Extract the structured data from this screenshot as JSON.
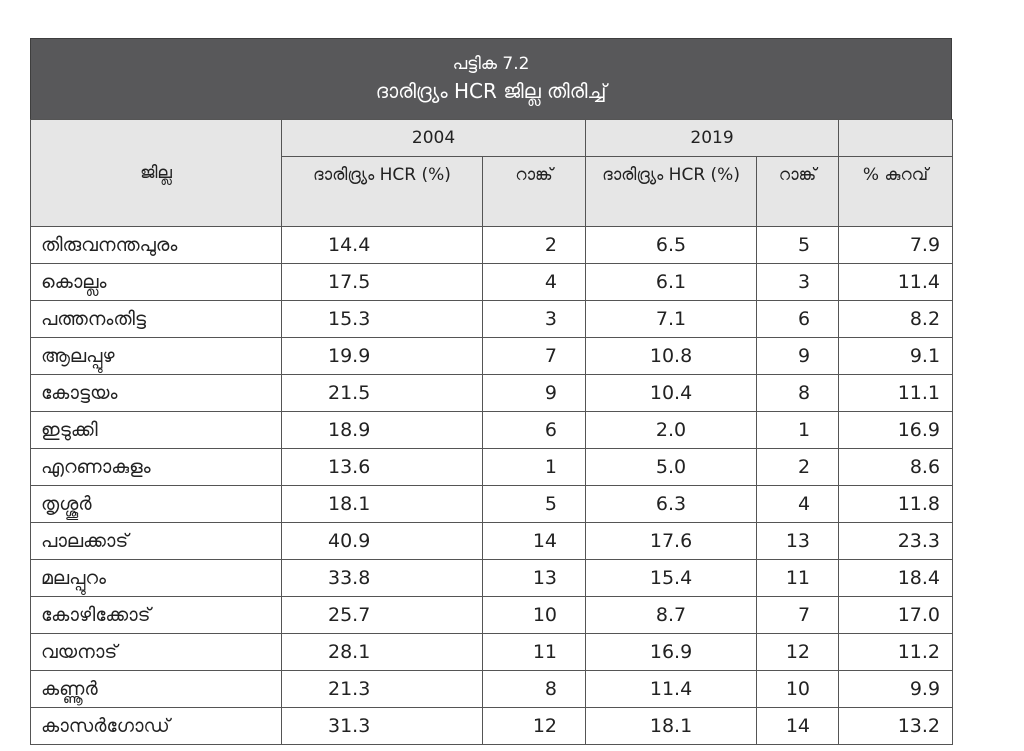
{
  "table": {
    "number": "പട്ടിക 7.2",
    "title": "ദാരിദ്ര്യം HCR ജില്ല തിരിച്ച്",
    "headers": {
      "district": "ജില്ല",
      "year_2004": "2004",
      "year_2019": "2019",
      "hcr_2004": "ദാരിദ്ര്യം HCR (%)",
      "rank_2004": "റാങ്ക്",
      "hcr_2019": "ദാരിദ്ര്യം HCR (%)",
      "rank_2019": "റാങ്ക്",
      "reduction": "% കുറവ്"
    },
    "rows": [
      {
        "district": "തിരുവനന്തപുരം",
        "hcr_2004": "14.4",
        "rank_2004": "2",
        "hcr_2019": "6.5",
        "rank_2019": "5",
        "reduction": "7.9"
      },
      {
        "district": "കൊല്ലം",
        "hcr_2004": "17.5",
        "rank_2004": "4",
        "hcr_2019": "6.1",
        "rank_2019": "3",
        "reduction": "11.4"
      },
      {
        "district": "പത്തനംതിട്ട",
        "hcr_2004": "15.3",
        "rank_2004": "3",
        "hcr_2019": "7.1",
        "rank_2019": "6",
        "reduction": "8.2"
      },
      {
        "district": "ആലപ്പുഴ",
        "hcr_2004": "19.9",
        "rank_2004": "7",
        "hcr_2019": "10.8",
        "rank_2019": "9",
        "reduction": "9.1"
      },
      {
        "district": "കോട്ടയം",
        "hcr_2004": "21.5",
        "rank_2004": "9",
        "hcr_2019": "10.4",
        "rank_2019": "8",
        "reduction": "11.1"
      },
      {
        "district": "ഇടുക്കി",
        "hcr_2004": "18.9",
        "rank_2004": "6",
        "hcr_2019": "2.0",
        "rank_2019": "1",
        "reduction": "16.9"
      },
      {
        "district": "എറണാകുളം",
        "hcr_2004": "13.6",
        "rank_2004": "1",
        "hcr_2019": "5.0",
        "rank_2019": "2",
        "reduction": "8.6"
      },
      {
        "district": "തൃശ്ശൂർ",
        "hcr_2004": "18.1",
        "rank_2004": "5",
        "hcr_2019": "6.3",
        "rank_2019": "4",
        "reduction": "11.8"
      },
      {
        "district": "പാലക്കാട്",
        "hcr_2004": "40.9",
        "rank_2004": "14",
        "hcr_2019": "17.6",
        "rank_2019": "13",
        "reduction": "23.3"
      },
      {
        "district": "മലപ്പുറം",
        "hcr_2004": "33.8",
        "rank_2004": "13",
        "hcr_2019": "15.4",
        "rank_2019": "11",
        "reduction": "18.4"
      },
      {
        "district": "കോഴിക്കോട്",
        "hcr_2004": "25.7",
        "rank_2004": "10",
        "hcr_2019": "8.7",
        "rank_2019": "7",
        "reduction": "17.0"
      },
      {
        "district": "വയനാട്",
        "hcr_2004": "28.1",
        "rank_2004": "11",
        "hcr_2019": "16.9",
        "rank_2019": "12",
        "reduction": "11.2"
      },
      {
        "district": "കണ്ണൂർ",
        "hcr_2004": "21.3",
        "rank_2004": "8",
        "hcr_2019": "11.4",
        "rank_2019": "10",
        "reduction": "9.9"
      },
      {
        "district": "കാസർഗോഡ്",
        "hcr_2004": "31.3",
        "rank_2004": "12",
        "hcr_2019": "18.1",
        "rank_2019": "14",
        "reduction": "13.2"
      }
    ]
  }
}
